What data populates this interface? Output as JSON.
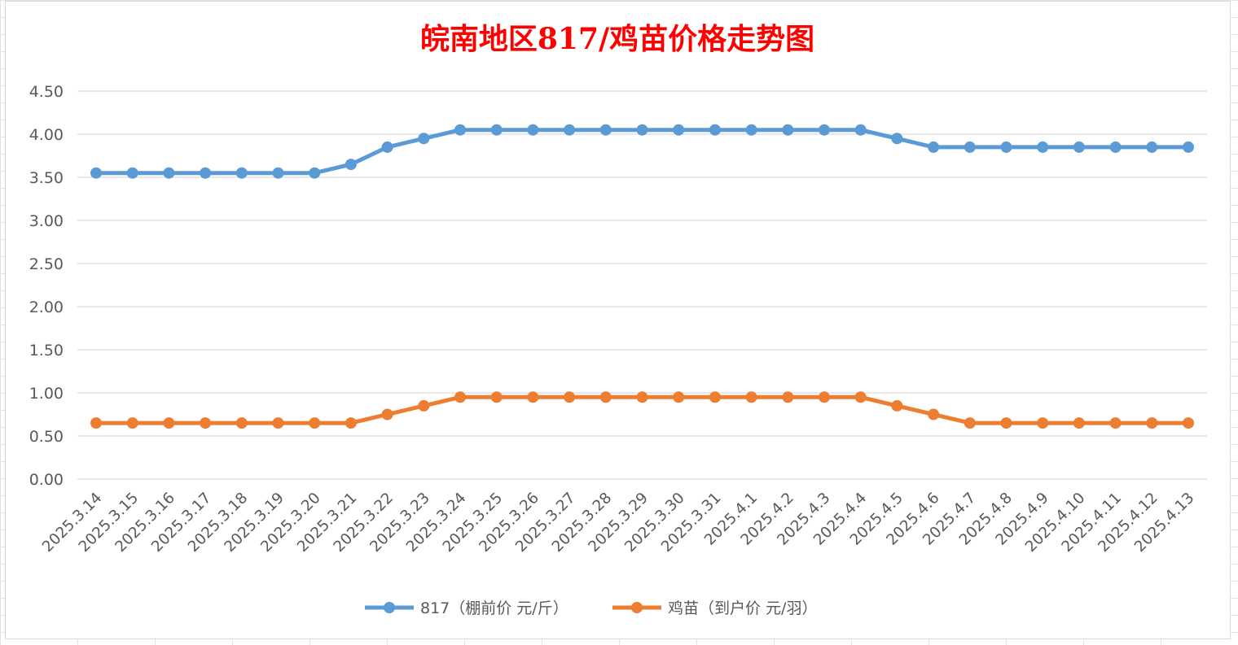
{
  "chart_data": {
    "type": "line",
    "title": "皖南地区817/鸡苗价格走势图",
    "title_color": "#ff0000",
    "xlabel": "",
    "ylabel": "",
    "ylim": [
      0,
      4.5
    ],
    "y_ticks": [
      "0.00",
      "0.50",
      "1.00",
      "1.50",
      "2.00",
      "2.50",
      "3.00",
      "3.50",
      "4.00",
      "4.50"
    ],
    "grid": true,
    "legend_position": "bottom",
    "categories": [
      "2025.3.14",
      "2025.3.15",
      "2025.3.16",
      "2025.3.17",
      "2025.3.18",
      "2025.3.19",
      "2025.3.20",
      "2025.3.21",
      "2025.3.22",
      "2025.3.23",
      "2025.3.24",
      "2025.3.25",
      "2025.3.26",
      "2025.3.27",
      "2025.3.28",
      "2025.3.29",
      "2025.3.30",
      "2025.3.31",
      "2025.4.1",
      "2025.4.2",
      "2025.4.3",
      "2025.4.4",
      "2025.4.5",
      "2025.4.6",
      "2025.4.7",
      "2025.4.8",
      "2025.4.9",
      "2025.4.10",
      "2025.4.11",
      "2025.4.12",
      "2025.4.13"
    ],
    "series": [
      {
        "name": "817（棚前价 元/斤）",
        "color": "#5b9bd5",
        "values": [
          3.55,
          3.55,
          3.55,
          3.55,
          3.55,
          3.55,
          3.55,
          3.65,
          3.85,
          3.95,
          4.05,
          4.05,
          4.05,
          4.05,
          4.05,
          4.05,
          4.05,
          4.05,
          4.05,
          4.05,
          4.05,
          4.05,
          3.95,
          3.85,
          3.85,
          3.85,
          3.85,
          3.85,
          3.85,
          3.85,
          3.85
        ]
      },
      {
        "name": "鸡苗（到户价 元/羽）",
        "color": "#ed7d31",
        "values": [
          0.65,
          0.65,
          0.65,
          0.65,
          0.65,
          0.65,
          0.65,
          0.65,
          0.75,
          0.85,
          0.95,
          0.95,
          0.95,
          0.95,
          0.95,
          0.95,
          0.95,
          0.95,
          0.95,
          0.95,
          0.95,
          0.95,
          0.85,
          0.75,
          0.65,
          0.65,
          0.65,
          0.65,
          0.65,
          0.65,
          0.65
        ]
      }
    ]
  }
}
